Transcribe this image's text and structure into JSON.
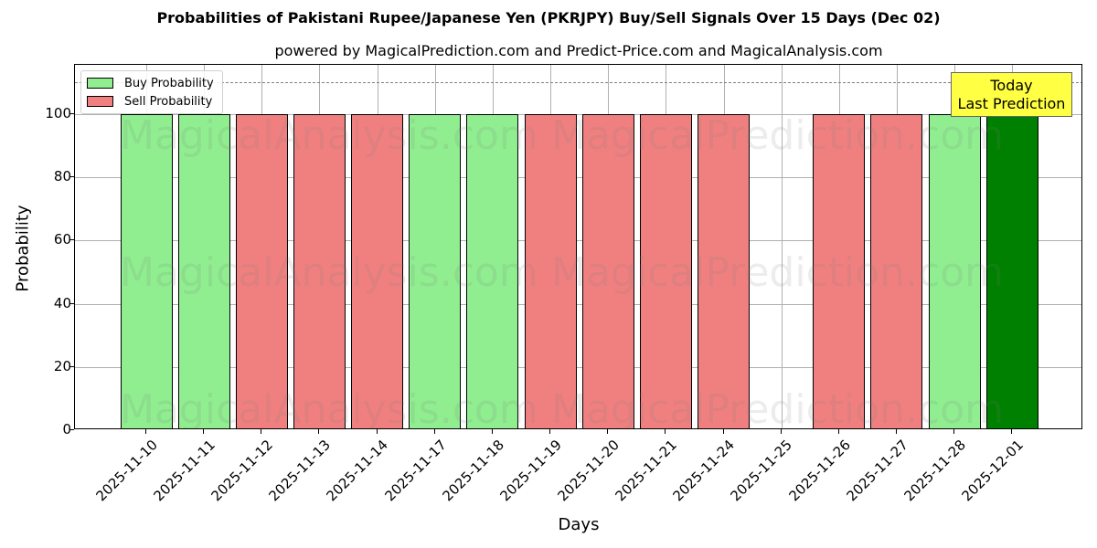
{
  "title": "Probabilities of Pakistani Rupee/Japanese Yen (PKRJPY) Buy/Sell Signals Over 15 Days (Dec 02)",
  "subtitle": "powered by MagicalPrediction.com and Predict-Price.com and MagicalAnalysis.com",
  "legend": {
    "buy_label": "Buy Probability",
    "sell_label": "Sell Probability"
  },
  "annotation": {
    "line1": "Today",
    "line2": "Last Prediction"
  },
  "watermarks": [
    "MagicalAnalysis.com",
    "MagicalPrediction.com"
  ],
  "colors": {
    "buy": "#90ee90",
    "sell": "#f08080",
    "today": "#008000",
    "annotation_bg": "#ffff44"
  },
  "chart_data": {
    "type": "bar",
    "title": "Probabilities of Pakistani Rupee/Japanese Yen (PKRJPY) Buy/Sell Signals Over 15 Days (Dec 02)",
    "subtitle": "powered by MagicalPrediction.com and Predict-Price.com and MagicalAnalysis.com",
    "xlabel": "Days",
    "ylabel": "Probability",
    "ylim": [
      0,
      115
    ],
    "yticks": [
      0,
      20,
      40,
      60,
      80,
      100
    ],
    "grid": true,
    "legend_position": "upper left",
    "reference_line": {
      "y": 110,
      "style": "dashed"
    },
    "categories": [
      "2025-11-10",
      "2025-11-11",
      "2025-11-12",
      "2025-11-13",
      "2025-11-14",
      "2025-11-17",
      "2025-11-18",
      "2025-11-19",
      "2025-11-20",
      "2025-11-21",
      "2025-11-24",
      "2025-11-25",
      "2025-11-26",
      "2025-11-27",
      "2025-11-28",
      "2025-12-01"
    ],
    "series": [
      {
        "name": "Buy Probability",
        "values": [
          100,
          100,
          0,
          0,
          0,
          100,
          100,
          0,
          0,
          0,
          0,
          0,
          0,
          0,
          100,
          100
        ]
      },
      {
        "name": "Sell Probability",
        "values": [
          0,
          0,
          100,
          100,
          100,
          0,
          0,
          100,
          100,
          100,
          100,
          0,
          100,
          100,
          0,
          0
        ]
      }
    ],
    "bars": [
      {
        "date": "2025-11-10",
        "signal": "buy",
        "value": 100
      },
      {
        "date": "2025-11-11",
        "signal": "buy",
        "value": 100
      },
      {
        "date": "2025-11-12",
        "signal": "sell",
        "value": 100
      },
      {
        "date": "2025-11-13",
        "signal": "sell",
        "value": 100
      },
      {
        "date": "2025-11-14",
        "signal": "sell",
        "value": 100
      },
      {
        "date": "2025-11-17",
        "signal": "buy",
        "value": 100
      },
      {
        "date": "2025-11-18",
        "signal": "buy",
        "value": 100
      },
      {
        "date": "2025-11-19",
        "signal": "sell",
        "value": 100
      },
      {
        "date": "2025-11-20",
        "signal": "sell",
        "value": 100
      },
      {
        "date": "2025-11-21",
        "signal": "sell",
        "value": 100
      },
      {
        "date": "2025-11-24",
        "signal": "sell",
        "value": 100
      },
      {
        "date": "2025-11-25",
        "signal": "none",
        "value": 0
      },
      {
        "date": "2025-11-26",
        "signal": "sell",
        "value": 100
      },
      {
        "date": "2025-11-27",
        "signal": "sell",
        "value": 100
      },
      {
        "date": "2025-11-28",
        "signal": "buy",
        "value": 100
      },
      {
        "date": "2025-12-01",
        "signal": "today",
        "value": 100
      }
    ],
    "annotations": [
      {
        "text": "Today\nLast Prediction",
        "x": "2025-12-01"
      }
    ]
  }
}
